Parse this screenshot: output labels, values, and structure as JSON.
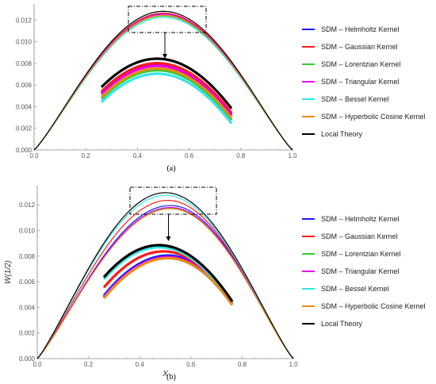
{
  "figure": {
    "caption_a": "(a)",
    "caption_b": "(b)"
  },
  "chart_data": [
    {
      "type": "line",
      "panel": "a",
      "xlabel": "",
      "ylabel": "",
      "xlim": [
        0,
        1
      ],
      "ylim": [
        0,
        0.0135
      ],
      "xticks": [
        "0.0",
        "0.2",
        "0.4",
        "0.6",
        "0.8",
        "1.0"
      ],
      "yticks": [
        "0.000",
        "0.002",
        "0.004",
        "0.006",
        "0.008",
        "0.010",
        "0.012"
      ],
      "grid": false,
      "legend_position": "right",
      "inset": {
        "xrange": [
          0.38,
          0.66
        ],
        "yrange": [
          0.0111,
          0.0132
        ],
        "arrow": true
      },
      "series": [
        {
          "name": "SDM – Helmholtz Kernel",
          "color": "#1a1aff",
          "peak": 0.0126,
          "x_peak": 0.5
        },
        {
          "name": "SDM – Gaussian Kernel",
          "color": "#ff1a1a",
          "peak": 0.01265,
          "x_peak": 0.5
        },
        {
          "name": "SDM – Lorentzian Kernel",
          "color": "#33cc33",
          "peak": 0.01238,
          "x_peak": 0.5
        },
        {
          "name": "SDM – Triangular Kernel",
          "color": "#e600e6",
          "peak": 0.01255,
          "x_peak": 0.5
        },
        {
          "name": "SDM – Bessel Kernel",
          "color": "#33e6e6",
          "peak": 0.01225,
          "x_peak": 0.5
        },
        {
          "name": "SDM – Hyperbolic Cosine Kernel",
          "color": "#e68a1a",
          "peak": 0.01245,
          "x_peak": 0.5
        },
        {
          "name": "Local Theory",
          "color": "#000000",
          "peak": 0.01282,
          "x_peak": 0.5
        }
      ]
    },
    {
      "type": "line",
      "panel": "b",
      "xlabel": "X",
      "ylabel": "W(1/2)",
      "xlim": [
        0,
        1
      ],
      "ylim": [
        0,
        0.0135
      ],
      "xticks": [
        "0.0",
        "0.2",
        "0.4",
        "0.6",
        "0.8",
        "1.0"
      ],
      "yticks": [
        "0.000",
        "0.002",
        "0.004",
        "0.006",
        "0.008",
        "0.010",
        "0.012"
      ],
      "grid": false,
      "legend_position": "right",
      "inset": {
        "xrange": [
          0.38,
          0.66
        ],
        "yrange": [
          0.0111,
          0.0132
        ],
        "arrow": true
      },
      "series": [
        {
          "name": "SDM – Helmholtz Kernel",
          "color": "#1a1aff",
          "peak": 0.01195,
          "x_peak": 0.52
        },
        {
          "name": "SDM – Gaussian Kernel",
          "color": "#ff1a1a",
          "peak": 0.01235,
          "x_peak": 0.51
        },
        {
          "name": "SDM – Lorentzian Kernel",
          "color": "#33cc33",
          "peak": 0.01175,
          "x_peak": 0.52
        },
        {
          "name": "SDM – Triangular Kernel",
          "color": "#e600e6",
          "peak": 0.0118,
          "x_peak": 0.52
        },
        {
          "name": "SDM – Bessel Kernel",
          "color": "#33e6e6",
          "peak": 0.01275,
          "x_peak": 0.5
        },
        {
          "name": "SDM – Hyperbolic Cosine Kernel",
          "color": "#e68a1a",
          "peak": 0.0117,
          "x_peak": 0.52
        },
        {
          "name": "Local Theory",
          "color": "#000000",
          "peak": 0.01295,
          "x_peak": 0.5
        }
      ]
    }
  ]
}
